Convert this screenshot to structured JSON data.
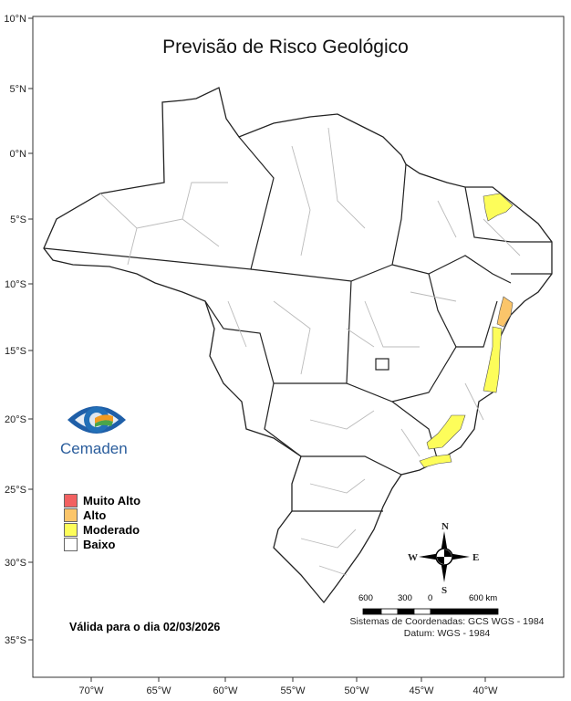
{
  "title": "Previsão de Risco Geológico",
  "lat_ticks": [
    "10°N",
    "5°N",
    "0°N",
    "5°S",
    "10°S",
    "15°S",
    "20°S",
    "25°S",
    "30°S",
    "35°S"
  ],
  "lon_ticks": [
    "70°W",
    "65°W",
    "60°W",
    "55°W",
    "50°W",
    "45°W",
    "40°W"
  ],
  "legend": {
    "items": [
      {
        "label": "Muito Alto",
        "color": "#f26161"
      },
      {
        "label": "Alto",
        "color": "#fbc56a"
      },
      {
        "label": "Moderado",
        "color": "#fdfd5a"
      },
      {
        "label": "Baixo",
        "color": "#ffffff"
      }
    ]
  },
  "logo": {
    "text": "Cemaden"
  },
  "validity": "Válida para o dia 02/03/2026",
  "compass": {
    "n": "N",
    "s": "S",
    "e": "E",
    "w": "W"
  },
  "scale": {
    "labels": [
      "600",
      "300",
      "0",
      "600 km"
    ]
  },
  "crs": {
    "system": "Sistemas de Coordenadas: GCS WGS - 1984",
    "datum": "Datum: WGS - 1984"
  }
}
